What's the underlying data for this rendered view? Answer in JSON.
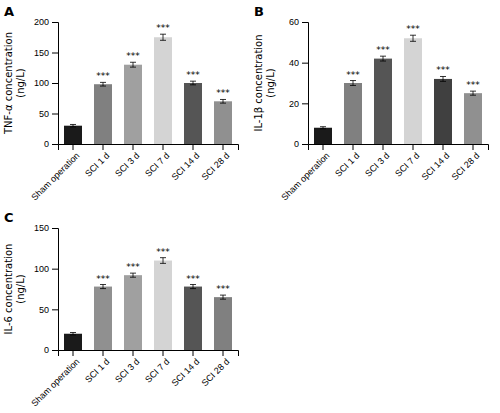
{
  "chart_data": [
    {
      "type": "bar",
      "title": "A",
      "ylabel": "TNF-α concentration\n(ng/L)",
      "ylim": [
        0,
        200
      ],
      "yticks": [
        0,
        50,
        100,
        150,
        200
      ],
      "categories": [
        "Sham operation",
        "SCI 1 d",
        "SCI 3 d",
        "SCI 7 d",
        "SCI 14 d",
        "SCI 28 d"
      ],
      "values": [
        30,
        98,
        130,
        175,
        100,
        70
      ],
      "errors": [
        2,
        3,
        4,
        5,
        3,
        3
      ],
      "colors": [
        "#1a1a1a",
        "#808080",
        "#a0a0a0",
        "#d4d4d4",
        "#555555",
        "#909090"
      ],
      "annotations": [
        null,
        "***",
        "***",
        "***",
        "***",
        "***"
      ],
      "grid": false
    },
    {
      "type": "bar",
      "title": "B",
      "ylabel": "IL-1β concentration\n(ng/L)",
      "ylim": [
        0,
        60
      ],
      "yticks": [
        0,
        20,
        40,
        60
      ],
      "categories": [
        "Sham operation",
        "SCI 1 d",
        "SCI 3 d",
        "SCI 7 d",
        "SCI 14 d",
        "SCI 28 d"
      ],
      "values": [
        8,
        30,
        42,
        52,
        32,
        25
      ],
      "errors": [
        0.5,
        1.2,
        1.2,
        1.5,
        1.2,
        1.0
      ],
      "colors": [
        "#1a1a1a",
        "#808080",
        "#555555",
        "#d4d4d4",
        "#404040",
        "#909090"
      ],
      "annotations": [
        null,
        "***",
        "***",
        "***",
        "***",
        "***"
      ],
      "grid": false
    },
    {
      "type": "bar",
      "title": "C",
      "ylabel": "IL-6 concentration\n(ng/L)",
      "ylim": [
        0,
        150
      ],
      "yticks": [
        0,
        50,
        100,
        150
      ],
      "categories": [
        "Sham operation",
        "SCI 1 d",
        "SCI 3 d",
        "SCI 7 d",
        "SCI 14 d",
        "SCI 28 d"
      ],
      "values": [
        20,
        78,
        92,
        110,
        78,
        65
      ],
      "errors": [
        1.5,
        2.5,
        2.5,
        3.5,
        2.5,
        2.5
      ],
      "colors": [
        "#1a1a1a",
        "#909090",
        "#a0a0a0",
        "#d4d4d4",
        "#555555",
        "#808080"
      ],
      "annotations": [
        null,
        "***",
        "***",
        "***",
        "***",
        "***"
      ],
      "grid": false
    }
  ]
}
